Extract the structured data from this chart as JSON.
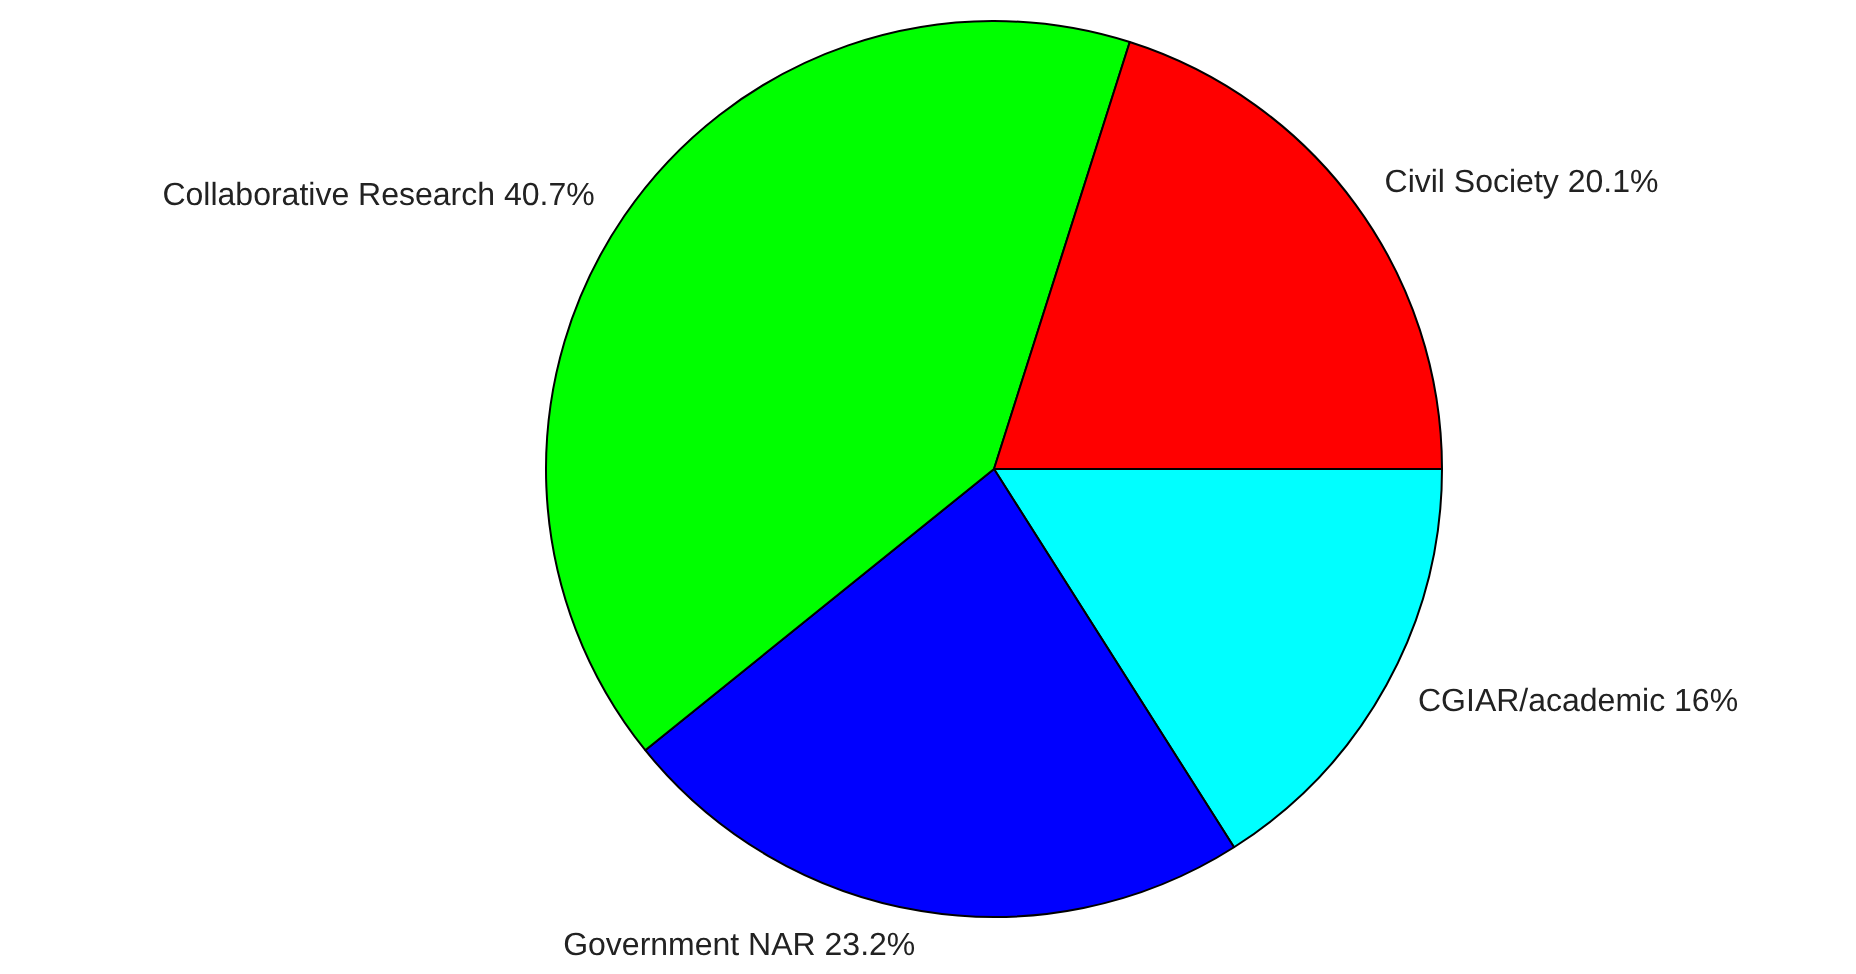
{
  "chart_data": {
    "type": "pie",
    "categories": [
      "CGIAR/academic",
      "Government NAR",
      "Collaborative Research",
      "Civil Society"
    ],
    "values": [
      16,
      23.2,
      40.7,
      20.1
    ],
    "value_labels": [
      "16%",
      "23.2%",
      "40.7%",
      "20.1%"
    ],
    "colors": [
      "#00ffff",
      "#0000ff",
      "#00ff00",
      "#ff0000"
    ],
    "legend": false
  }
}
